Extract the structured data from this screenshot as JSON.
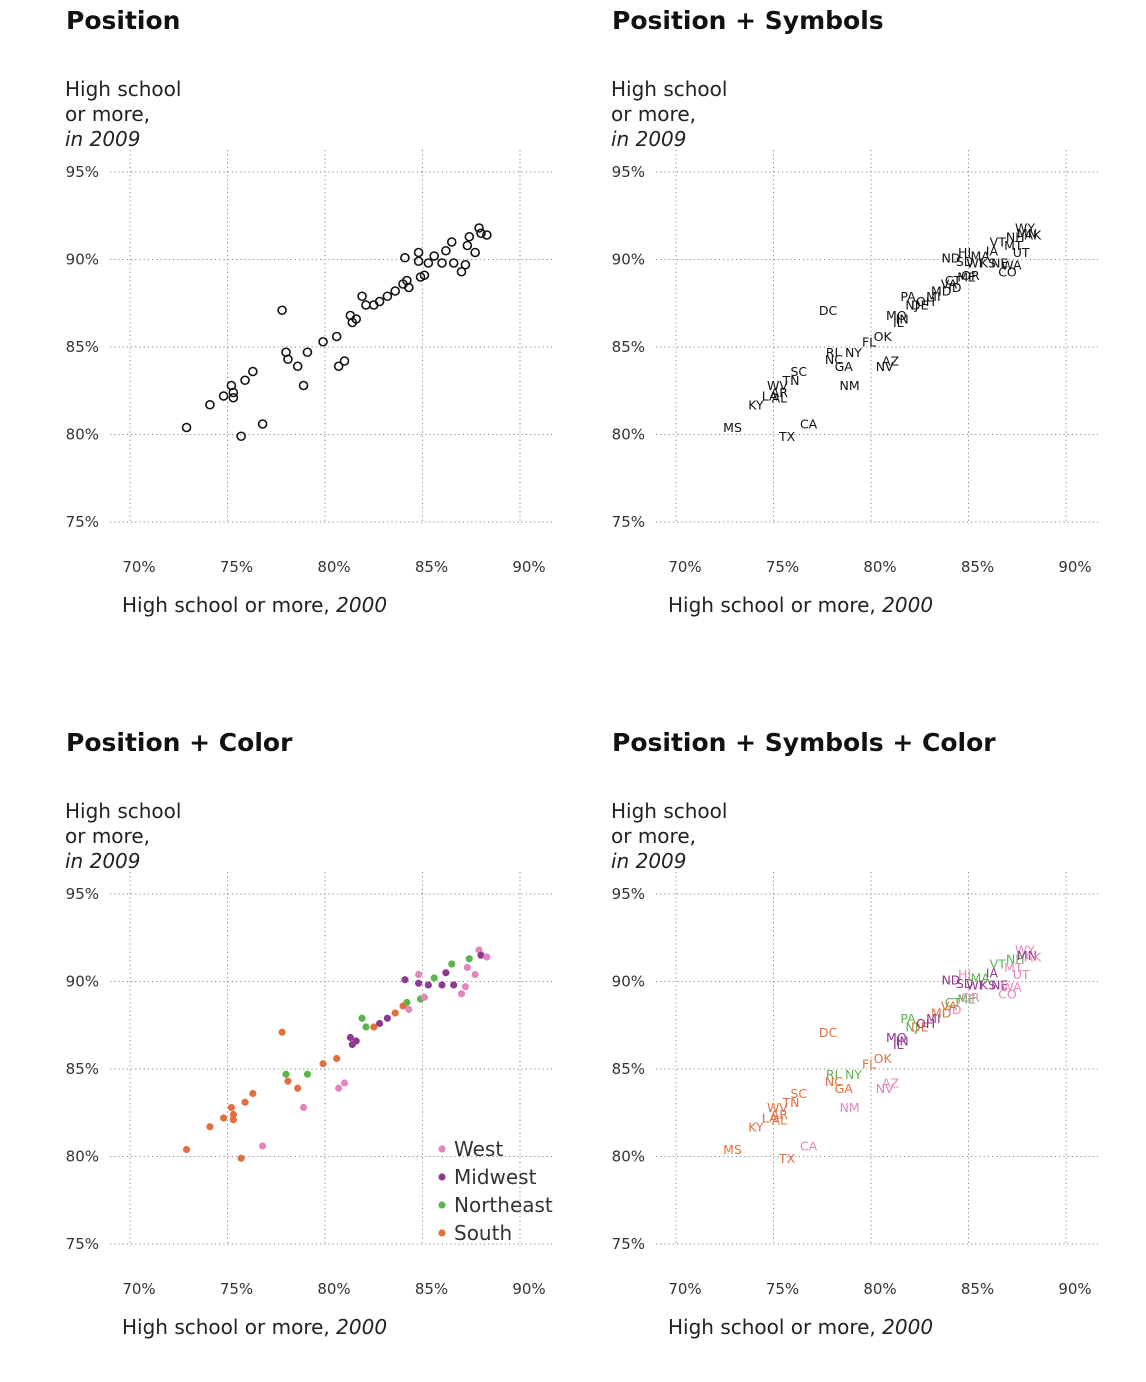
{
  "colors": {
    "West": "#e386bd",
    "Midwest": "#8e3a90",
    "Northeast": "#5db44d",
    "South": "#e2703f",
    "points": "#111111"
  },
  "panels": [
    {
      "title": "Position",
      "mode": "circles",
      "ylabel": {
        "line1": "High school",
        "line2": "or more,",
        "line3": "in 2009"
      },
      "xlabel": {
        "main": "High school or more, ",
        "year": "2000"
      }
    },
    {
      "title": "Position + Symbols",
      "mode": "labels",
      "ylabel": {
        "line1": "High school",
        "line2": "or more,",
        "line3": "in 2009"
      },
      "xlabel": {
        "main": "High school or more, ",
        "year": "2000"
      }
    },
    {
      "title": "Position + Color",
      "mode": "colordots",
      "ylabel": {
        "line1": "High school",
        "line2": "or more,",
        "line3": "in 2009"
      },
      "xlabel": {
        "main": "High school or more, ",
        "year": "2000"
      }
    },
    {
      "title": "Position + Symbols + Color",
      "mode": "colorlabels",
      "ylabel": {
        "line1": "High school",
        "line2": "or more,",
        "line3": "in 2009"
      },
      "xlabel": {
        "main": "High school or more, ",
        "year": "2000"
      }
    }
  ],
  "legend": [
    "West",
    "Midwest",
    "Northeast",
    "South"
  ],
  "chart_data": {
    "type": "scatter",
    "xlim": [
      70,
      90
    ],
    "ylim": [
      75,
      95
    ],
    "xticks": [
      70,
      75,
      80,
      85,
      90
    ],
    "yticks": [
      75,
      80,
      85,
      90,
      95
    ],
    "tick_suffix": "%",
    "grid": true,
    "legend_position": "bottom-right",
    "points": [
      {
        "state": "MS",
        "x": 72.9,
        "y": 80.4,
        "region": "South"
      },
      {
        "state": "KY",
        "x": 74.1,
        "y": 81.7,
        "region": "South"
      },
      {
        "state": "LA",
        "x": 74.8,
        "y": 82.2,
        "region": "South"
      },
      {
        "state": "AR",
        "x": 75.3,
        "y": 82.4,
        "region": "South"
      },
      {
        "state": "AL",
        "x": 75.3,
        "y": 82.1,
        "region": "South"
      },
      {
        "state": "WV",
        "x": 75.2,
        "y": 82.8,
        "region": "South"
      },
      {
        "state": "TN",
        "x": 75.9,
        "y": 83.1,
        "region": "South"
      },
      {
        "state": "SC",
        "x": 76.3,
        "y": 83.6,
        "region": "South"
      },
      {
        "state": "TX",
        "x": 75.7,
        "y": 79.9,
        "region": "South"
      },
      {
        "state": "CA",
        "x": 76.8,
        "y": 80.6,
        "region": "West"
      },
      {
        "state": "DC",
        "x": 77.8,
        "y": 87.1,
        "region": "South"
      },
      {
        "state": "RI",
        "x": 78.0,
        "y": 84.7,
        "region": "Northeast"
      },
      {
        "state": "NC",
        "x": 78.1,
        "y": 84.3,
        "region": "South"
      },
      {
        "state": "GA",
        "x": 78.6,
        "y": 83.9,
        "region": "South"
      },
      {
        "state": "NY",
        "x": 79.1,
        "y": 84.7,
        "region": "Northeast"
      },
      {
        "state": "NM",
        "x": 78.9,
        "y": 82.8,
        "region": "West"
      },
      {
        "state": "FL",
        "x": 79.9,
        "y": 85.3,
        "region": "South"
      },
      {
        "state": "OK",
        "x": 80.6,
        "y": 85.6,
        "region": "South"
      },
      {
        "state": "NV",
        "x": 80.7,
        "y": 83.9,
        "region": "West"
      },
      {
        "state": "AZ",
        "x": 81.0,
        "y": 84.2,
        "region": "West"
      },
      {
        "state": "MO",
        "x": 81.3,
        "y": 86.8,
        "region": "Midwest"
      },
      {
        "state": "IL",
        "x": 81.4,
        "y": 86.4,
        "region": "Midwest"
      },
      {
        "state": "IN",
        "x": 81.6,
        "y": 86.6,
        "region": "Midwest"
      },
      {
        "state": "PA",
        "x": 81.9,
        "y": 87.9,
        "region": "Northeast"
      },
      {
        "state": "NJ",
        "x": 82.1,
        "y": 87.4,
        "region": "Northeast"
      },
      {
        "state": "DE",
        "x": 82.5,
        "y": 87.4,
        "region": "South"
      },
      {
        "state": "OH",
        "x": 82.8,
        "y": 87.6,
        "region": "Midwest"
      },
      {
        "state": "MI",
        "x": 83.2,
        "y": 87.9,
        "region": "Midwest"
      },
      {
        "state": "MD",
        "x": 83.6,
        "y": 88.2,
        "region": "South"
      },
      {
        "state": "ID",
        "x": 84.3,
        "y": 88.4,
        "region": "West"
      },
      {
        "state": "CT",
        "x": 84.2,
        "y": 88.8,
        "region": "Northeast"
      },
      {
        "state": "VA",
        "x": 84.0,
        "y": 88.6,
        "region": "South"
      },
      {
        "state": "ME",
        "x": 84.9,
        "y": 89.0,
        "region": "Northeast"
      },
      {
        "state": "OR",
        "x": 85.1,
        "y": 89.1,
        "region": "West"
      },
      {
        "state": "ND",
        "x": 84.1,
        "y": 90.1,
        "region": "Midwest"
      },
      {
        "state": "HI",
        "x": 84.8,
        "y": 90.4,
        "region": "West"
      },
      {
        "state": "SD",
        "x": 84.8,
        "y": 89.9,
        "region": "Midwest"
      },
      {
        "state": "WI",
        "x": 85.3,
        "y": 89.8,
        "region": "Midwest"
      },
      {
        "state": "MA",
        "x": 85.6,
        "y": 90.2,
        "region": "Northeast"
      },
      {
        "state": "IA",
        "x": 86.2,
        "y": 90.5,
        "region": "Midwest"
      },
      {
        "state": "KS",
        "x": 86.0,
        "y": 89.8,
        "region": "Midwest"
      },
      {
        "state": "NE",
        "x": 86.6,
        "y": 89.8,
        "region": "Midwest"
      },
      {
        "state": "WA",
        "x": 87.2,
        "y": 89.7,
        "region": "West"
      },
      {
        "state": "CO",
        "x": 87.0,
        "y": 89.3,
        "region": "West"
      },
      {
        "state": "VT",
        "x": 86.5,
        "y": 91.0,
        "region": "Northeast"
      },
      {
        "state": "UT",
        "x": 87.7,
        "y": 90.4,
        "region": "West"
      },
      {
        "state": "MT",
        "x": 87.3,
        "y": 90.8,
        "region": "West"
      },
      {
        "state": "NH",
        "x": 87.4,
        "y": 91.3,
        "region": "Northeast"
      },
      {
        "state": "WY",
        "x": 87.9,
        "y": 91.8,
        "region": "West"
      },
      {
        "state": "MN",
        "x": 88.0,
        "y": 91.5,
        "region": "Midwest"
      },
      {
        "state": "AK",
        "x": 88.3,
        "y": 91.4,
        "region": "West"
      }
    ]
  }
}
